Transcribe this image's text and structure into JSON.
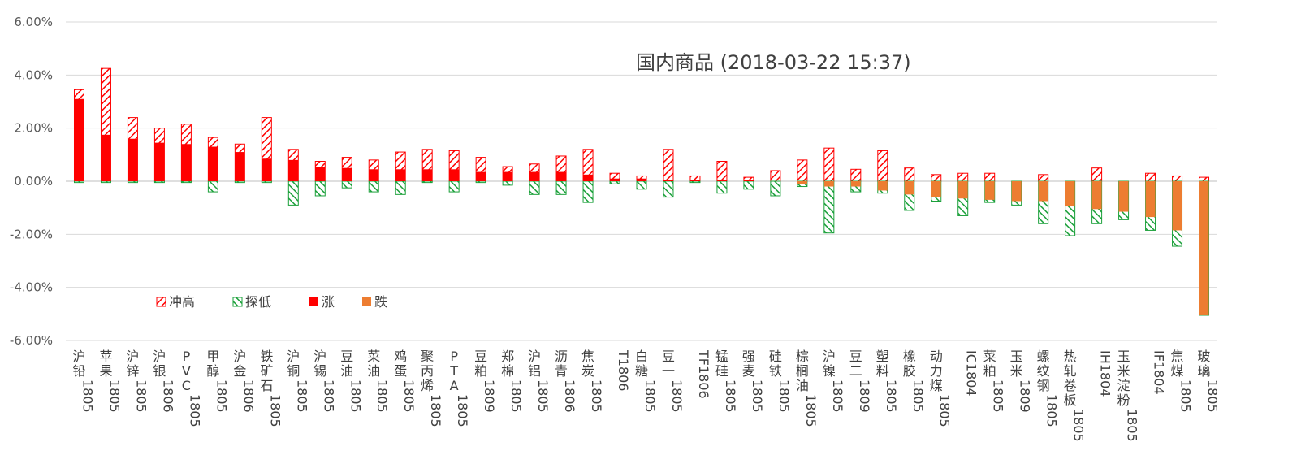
{
  "chart_data": {
    "type": "bar",
    "title": "国内商品 (2018-03-22 15:37)",
    "ylim": [
      -6,
      6
    ],
    "yticks": [
      6,
      4,
      2,
      0,
      -2,
      -4,
      -6
    ],
    "ytick_labels": [
      "6.00%",
      "4.00%",
      "2.00%",
      "0.00%",
      "-2.00%",
      "-4.00%",
      "-6.00%"
    ],
    "grid": true,
    "legend_position": "lower-left",
    "legend": [
      "冲高",
      "探低",
      "涨",
      "跌"
    ],
    "colors": {
      "high": "#ff0000",
      "low": "#1ba03a",
      "rise": "#ff0000",
      "fall": "#ed7d31",
      "grid": "#d9d9d9",
      "axis": "#bfbfbf"
    },
    "categories": [
      {
        "name": "沪铅",
        "code": "1805"
      },
      {
        "name": "苹果",
        "code": "1805"
      },
      {
        "name": "沪锌",
        "code": "1805"
      },
      {
        "name": "沪银",
        "code": "1806"
      },
      {
        "name": "PVC",
        "code": "1805"
      },
      {
        "name": "甲醇",
        "code": "1805"
      },
      {
        "name": "沪金",
        "code": "1806"
      },
      {
        "name": "铁矿石",
        "code": "1805"
      },
      {
        "name": "沪铜",
        "code": "1805"
      },
      {
        "name": "沪锡",
        "code": "1805"
      },
      {
        "name": "豆油",
        "code": "1805"
      },
      {
        "name": "菜油",
        "code": "1805"
      },
      {
        "name": "鸡蛋",
        "code": "1805"
      },
      {
        "name": "聚丙烯",
        "code": "1805"
      },
      {
        "name": "PTA",
        "code": "1805"
      },
      {
        "name": "豆粕",
        "code": "1809"
      },
      {
        "name": "郑棉",
        "code": "1805"
      },
      {
        "name": "沪铝",
        "code": "1805"
      },
      {
        "name": "沥青",
        "code": "1806"
      },
      {
        "name": "焦炭",
        "code": "1805"
      },
      {
        "name": "",
        "code": "T1806"
      },
      {
        "name": "白糖",
        "code": "1805"
      },
      {
        "name": "豆一",
        "code": "1805"
      },
      {
        "name": "",
        "code": "TF1806"
      },
      {
        "name": "锰硅",
        "code": "1805"
      },
      {
        "name": "强麦",
        "code": "1805"
      },
      {
        "name": "硅铁",
        "code": "1805"
      },
      {
        "name": "棕榈油",
        "code": "1805"
      },
      {
        "name": "沪镍",
        "code": "1805"
      },
      {
        "name": "豆二",
        "code": "1809"
      },
      {
        "name": "塑料",
        "code": "1805"
      },
      {
        "name": "橡胶",
        "code": "1805"
      },
      {
        "name": "动力煤",
        "code": "1805"
      },
      {
        "name": "",
        "code": "IC1804"
      },
      {
        "name": "菜粕",
        "code": "1805"
      },
      {
        "name": "玉米",
        "code": "1809"
      },
      {
        "name": "螺纹钢",
        "code": "1805"
      },
      {
        "name": "热轧卷板",
        "code": "1805"
      },
      {
        "name": "",
        "code": "IH1804"
      },
      {
        "name": "玉米淀粉",
        "code": "1805"
      },
      {
        "name": "",
        "code": "IF1804"
      },
      {
        "name": "焦煤",
        "code": "1805"
      },
      {
        "name": "玻璃",
        "code": "1805"
      }
    ],
    "series": [
      {
        "name": "涨",
        "values": [
          3.1,
          1.75,
          1.6,
          1.45,
          1.4,
          1.3,
          1.1,
          0.85,
          0.8,
          0.55,
          0.5,
          0.45,
          0.45,
          0.45,
          0.45,
          0.35,
          0.35,
          0.35,
          0.35,
          0.25,
          0.1,
          0.1,
          0.05,
          0.05,
          0.05,
          0.05,
          0,
          0,
          0,
          0,
          0,
          0,
          0,
          0,
          0,
          0,
          0,
          0,
          0,
          0,
          0,
          0,
          0
        ]
      },
      {
        "name": "冲高",
        "values": [
          3.45,
          4.25,
          2.4,
          2.0,
          2.15,
          1.65,
          1.4,
          2.4,
          1.2,
          0.75,
          0.9,
          0.8,
          1.1,
          1.2,
          1.15,
          0.9,
          0.55,
          0.65,
          0.95,
          1.2,
          0.3,
          0.2,
          1.2,
          0.2,
          0.75,
          0.15,
          0.4,
          0.8,
          1.25,
          0.45,
          1.15,
          0.5,
          0.25,
          0.3,
          0.3,
          0,
          0.25,
          0,
          0.5,
          0,
          0.3,
          0.2,
          0.15
        ]
      },
      {
        "name": "跌",
        "values": [
          0,
          0,
          0,
          0,
          0,
          0,
          0,
          0,
          0,
          0,
          0,
          0,
          0,
          0,
          0,
          0,
          0,
          0,
          0,
          0,
          0,
          0,
          0,
          0,
          0,
          0,
          0,
          -0.1,
          -0.2,
          -0.2,
          -0.35,
          -0.5,
          -0.6,
          -0.65,
          -0.7,
          -0.75,
          -0.75,
          -0.95,
          -1.05,
          -1.15,
          -1.35,
          -1.85,
          -5.05
        ]
      },
      {
        "name": "探低",
        "values": [
          -0.05,
          -0.05,
          -0.05,
          -0.05,
          -0.05,
          -0.4,
          -0.05,
          -0.05,
          -0.9,
          -0.55,
          -0.25,
          -0.4,
          -0.5,
          -0.05,
          -0.4,
          -0.05,
          -0.15,
          -0.5,
          -0.5,
          -0.8,
          -0.1,
          -0.3,
          -0.6,
          -0.05,
          -0.45,
          -0.3,
          -0.55,
          -0.2,
          -1.95,
          -0.4,
          -0.45,
          -1.1,
          -0.75,
          -1.3,
          -0.8,
          -0.9,
          -1.6,
          -2.05,
          -1.6,
          -1.45,
          -1.85,
          -2.45,
          -5.05
        ]
      }
    ]
  }
}
